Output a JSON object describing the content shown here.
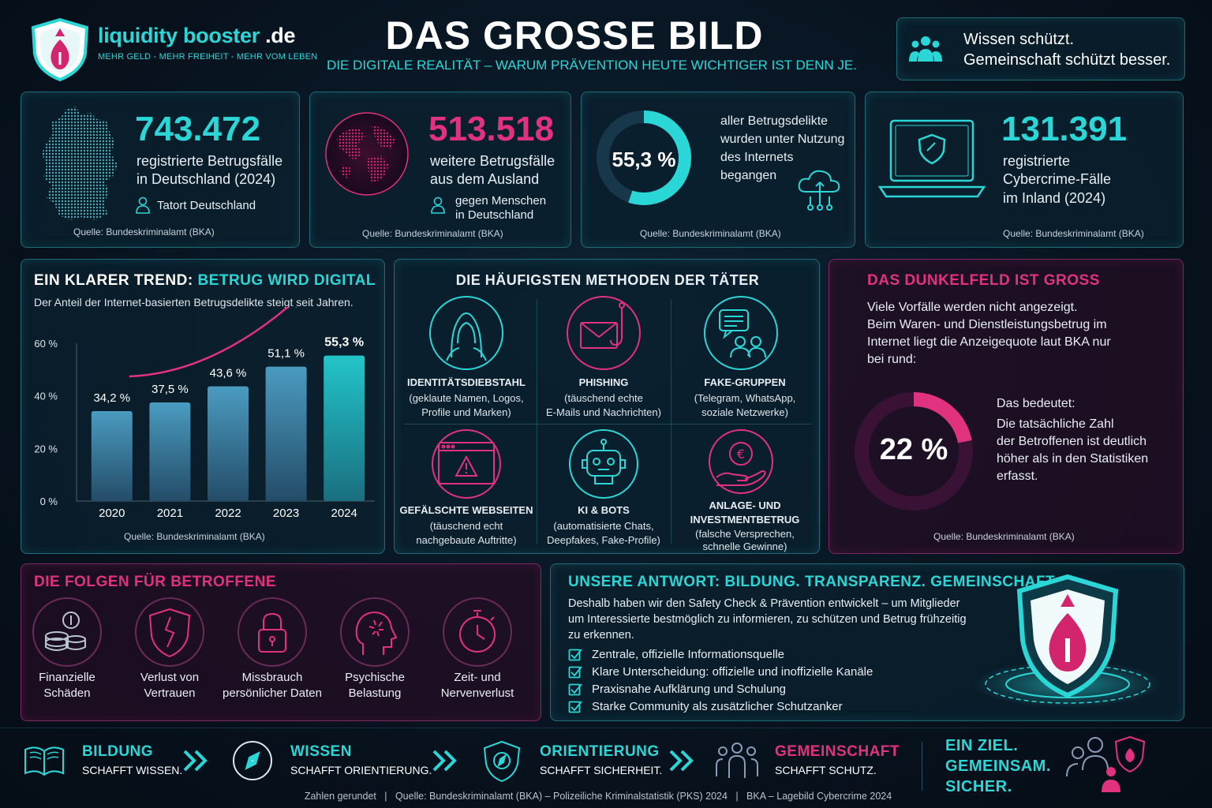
{
  "brand": {
    "name": "liquidity booster",
    "tld": ".de",
    "tagline": "MEHR GELD - MEHR FREIHEIT - MEHR VOM LEBEN"
  },
  "header": {
    "title": "DAS GROSSE BILD",
    "subtitle": "DIE DIGITALE REALITÄT – WARUM PRÄVENTION HEUTE WICHTIGER IST DENN JE.",
    "quote_line1": "Wissen schützt.",
    "quote_line2": "Gemeinschaft schützt besser."
  },
  "stats": [
    {
      "value": "743.472",
      "line1": "registrierte Betrugsfälle",
      "line2": "in Deutschland (2024)",
      "note": "Tatort Deutschland",
      "source": "Quelle: Bundeskriminalamt (BKA)"
    },
    {
      "value": "513.518",
      "line1": "weitere Betrugsfälle",
      "line2": "aus dem Ausland",
      "note1": "gegen Menschen",
      "note2": "in Deutschland",
      "source": "Quelle: Bundeskriminalamt (BKA)"
    },
    {
      "value": "55,3 %",
      "fraction": 0.553,
      "line1": "aller Betrugsdelikte",
      "line2": "wurden unter Nutzung",
      "line3": "des Internets",
      "line4": "begangen",
      "source": "Quelle: Bundeskriminalamt (BKA)"
    },
    {
      "value": "131.391",
      "line1": "registrierte",
      "line2": "Cybercrime-Fälle",
      "line3": "im Inland (2024)",
      "source": "Quelle: Bundeskriminalamt (BKA)"
    }
  ],
  "trend": {
    "title_a": "EIN KLARER TREND:",
    "title_b": "BETRUG WIRD DIGITAL",
    "desc": "Der Anteil der Internet-basierten Betrugsdelikte steigt seit Jahren.",
    "source": "Quelle: Bundeskriminalamt (BKA)"
  },
  "chart_data": {
    "type": "bar",
    "title": "EIN KLARER TREND: BETRUG WIRD DIGITAL",
    "categories": [
      "2020",
      "2021",
      "2022",
      "2023",
      "2024"
    ],
    "values": [
      34.2,
      37.5,
      43.6,
      51.1,
      55.3
    ],
    "data_labels": [
      "34,2 %",
      "37,5 %",
      "43,6 %",
      "51,1 %",
      "55,3 %"
    ],
    "yticks": [
      "0 %",
      "20 %",
      "40 %",
      "60 %"
    ],
    "ylim": [
      0,
      60
    ],
    "grid": false,
    "colors": {
      "bar": "#3e88a8",
      "highlight": "#22c4c8",
      "arrow": "#e0327f"
    }
  },
  "methods": {
    "title": "DIE HÄUFIGSTEN METHODEN DER TÄTER",
    "items": [
      {
        "icon": "hooded-figure-icon",
        "name": "IDENTITÄTSDIEBSTAHL",
        "d1": "(geklaute Namen, Logos,",
        "d2": "Profile und Marken)",
        "color": "#2ad6d6"
      },
      {
        "icon": "phishing-envelope-icon",
        "name": "PHISHING",
        "d1": "(täuschend echte",
        "d2": "E-Mails und Nachrichten)",
        "color": "#e0327f"
      },
      {
        "icon": "chat-group-icon",
        "name": "FAKE-GRUPPEN",
        "d1": "(Telegram, WhatsApp,",
        "d2": "soziale Netzwerke)",
        "color": "#2ad6d6"
      },
      {
        "icon": "warning-browser-icon",
        "name": "GEFÄLSCHTE WEBSEITEN",
        "d1": "(täuschend echt",
        "d2": "nachgebaute Auftritte)",
        "color": "#e0327f"
      },
      {
        "icon": "robot-icon",
        "name": "KI & BOTS",
        "d1": "(automatisierte Chats,",
        "d2": "Deepfakes, Fake-Profile)",
        "color": "#2ad6d6"
      },
      {
        "icon": "euro-hand-icon",
        "name": "ANLAGE- UND",
        "name2": "INVESTMENTBETRUG",
        "d1": "(falsche Versprechen,",
        "d2": "schnelle Gewinne)",
        "color": "#e0327f"
      }
    ]
  },
  "dark": {
    "title": "DAS DUNKELFELD IST GROSS",
    "p1": "Viele Vorfälle werden nicht angezeigt.",
    "p2": "Beim Waren- und Dienstleistungsbetrug im",
    "p3": "Internet liegt die Anzeigequote laut BKA nur",
    "p4": "bei rund:",
    "value": "22 %",
    "fraction": 0.22,
    "m1": "Das bedeutet:",
    "m2": "Die tatsächliche Zahl",
    "m3": "der Betroffenen ist deutlich",
    "m4": "höher als in den Statistiken",
    "m5": "erfasst.",
    "source": "Quelle: Bundeskriminalamt (BKA)"
  },
  "folgen": {
    "title": "DIE FOLGEN FÜR BETROFFENE",
    "items": [
      {
        "icon": "coins-icon",
        "l1": "Finanzielle",
        "l2": "Schäden"
      },
      {
        "icon": "broken-shield-icon",
        "l1": "Verlust von",
        "l2": "Vertrauen"
      },
      {
        "icon": "lock-icon",
        "l1": "Missbrauch",
        "l2": "persönlicher Daten"
      },
      {
        "icon": "head-stress-icon",
        "l1": "Psychische",
        "l2": "Belastung"
      },
      {
        "icon": "stopwatch-icon",
        "l1": "Zeit- und",
        "l2": "Nervenverlust"
      }
    ]
  },
  "answer": {
    "title": "UNSERE ANTWORT: BILDUNG. TRANSPARENZ. GEMEINSCHAFT.",
    "p1": "Deshalb haben wir den Safety Check & Prävention entwickelt – um Mitglieder",
    "p2": "um Interessierte bestmöglich zu informieren, zu schützen und Betrug frühzeitig",
    "p3": "zu erkennen.",
    "checks": [
      "Zentrale, offizielle Informationsquelle",
      "Klare Unterscheidung: offizielle und inoffizielle Kanäle",
      "Praxisnahe Aufklärung und Schulung",
      "Starke Community als zusätzlicher Schutzanker"
    ]
  },
  "footer": {
    "steps": [
      {
        "icon": "book-icon",
        "a": "BILDUNG",
        "b": "SCHAFFT WISSEN.",
        "color": "#2ad6d6"
      },
      {
        "icon": "compass-icon",
        "a": "WISSEN",
        "b": "SCHAFFT ORIENTIERUNG.",
        "color": "#2ad6d6"
      },
      {
        "icon": "shield-compass-icon",
        "a": "ORIENTIERUNG",
        "b": "SCHAFFT SICHERHEIT.",
        "color": "#2ad6d6"
      },
      {
        "icon": "people-icon",
        "a": "GEMEINSCHAFT",
        "b": "SCHAFFT SCHUTZ.",
        "color": "#e0327f"
      }
    ],
    "goal1": "EIN ZIEL.",
    "goal2": "GEMEINSAM.",
    "goal3": "SICHER.",
    "sources": "Zahlen gerundet   |   Quelle: Bundeskriminalamt (BKA) – Polizeiliche Kriminalstatistik (PKS) 2024   |   BKA – Lagebild Cybercrime 2024"
  }
}
